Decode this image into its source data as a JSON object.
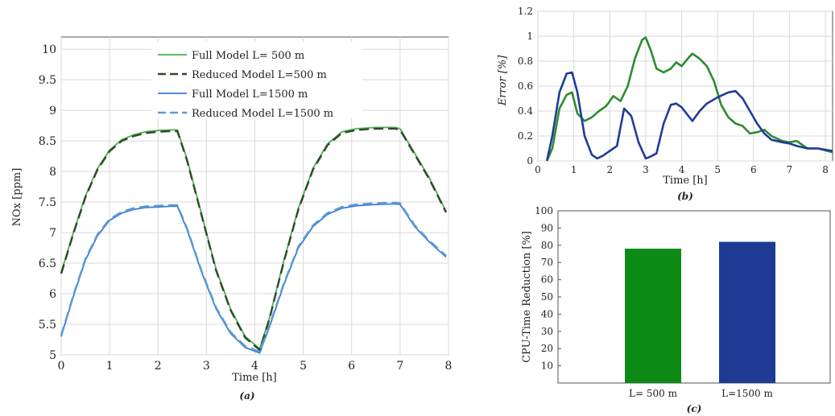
{
  "chart_data": [
    {
      "id": "a",
      "type": "line",
      "caption": "(a)",
      "xlabel": "Time [h]",
      "ylabel": "NOx [ppm]",
      "xlim": [
        0,
        8
      ],
      "ylim": [
        5,
        10.2
      ],
      "xticks": [
        0,
        1,
        2,
        3,
        4,
        5,
        6,
        7,
        8
      ],
      "yticks": [
        5,
        5.5,
        6,
        6.5,
        7,
        7.5,
        8,
        8.5,
        9,
        9.5,
        10
      ],
      "grid": true,
      "legend_position": "top-center",
      "series": [
        {
          "name": "Full Model L= 500 m",
          "color": "#4caf50",
          "style": "solid",
          "x": [
            0,
            0.25,
            0.5,
            0.75,
            1.0,
            1.25,
            1.5,
            1.75,
            2.0,
            2.25,
            2.4,
            2.6,
            2.9,
            3.2,
            3.5,
            3.8,
            4.1,
            4.3,
            4.6,
            4.9,
            5.2,
            5.5,
            5.8,
            6.1,
            6.5,
            6.9,
            7.0,
            7.3,
            7.6,
            7.95
          ],
          "y": [
            6.35,
            7.0,
            7.6,
            8.05,
            8.35,
            8.52,
            8.6,
            8.65,
            8.67,
            8.68,
            8.68,
            8.2,
            7.3,
            6.4,
            5.75,
            5.3,
            5.1,
            5.6,
            6.55,
            7.4,
            8.05,
            8.45,
            8.65,
            8.7,
            8.72,
            8.72,
            8.7,
            8.3,
            7.9,
            7.35
          ]
        },
        {
          "name": "Reduced Model L=500 m",
          "color": "#2f4a2a",
          "style": "dashed",
          "x": [
            0,
            0.25,
            0.5,
            0.75,
            1.0,
            1.25,
            1.5,
            1.75,
            2.0,
            2.25,
            2.4,
            2.6,
            2.9,
            3.2,
            3.5,
            3.8,
            4.1,
            4.3,
            4.6,
            4.9,
            5.2,
            5.5,
            5.8,
            6.1,
            6.5,
            6.9,
            7.0,
            7.3,
            7.6,
            7.95
          ],
          "y": [
            6.33,
            6.98,
            7.58,
            8.03,
            8.33,
            8.5,
            8.58,
            8.63,
            8.65,
            8.66,
            8.66,
            8.18,
            7.28,
            6.38,
            5.73,
            5.28,
            5.08,
            5.58,
            6.53,
            7.38,
            8.03,
            8.43,
            8.63,
            8.68,
            8.7,
            8.7,
            8.68,
            8.28,
            7.88,
            7.33
          ]
        },
        {
          "name": "Full Model L=1500 m",
          "color": "#3a7bd5",
          "style": "solid",
          "x": [
            0,
            0.25,
            0.5,
            0.75,
            1.0,
            1.25,
            1.5,
            1.75,
            2.0,
            2.25,
            2.4,
            2.6,
            2.9,
            3.2,
            3.5,
            3.8,
            4.1,
            4.3,
            4.6,
            4.9,
            5.2,
            5.5,
            5.8,
            6.1,
            6.5,
            6.9,
            7.0,
            7.3,
            7.6,
            7.95
          ],
          "y": [
            5.3,
            5.95,
            6.55,
            6.95,
            7.2,
            7.32,
            7.38,
            7.41,
            7.42,
            7.43,
            7.43,
            7.05,
            6.35,
            5.75,
            5.35,
            5.12,
            5.03,
            5.45,
            6.15,
            6.75,
            7.1,
            7.3,
            7.4,
            7.44,
            7.46,
            7.47,
            7.46,
            7.1,
            6.85,
            6.6
          ]
        },
        {
          "name": "Reduced Model L=1500 m",
          "color": "#5b9bd5",
          "style": "dashed",
          "x": [
            0,
            0.25,
            0.5,
            0.75,
            1.0,
            1.25,
            1.5,
            1.75,
            2.0,
            2.25,
            2.4,
            2.6,
            2.9,
            3.2,
            3.5,
            3.8,
            4.1,
            4.3,
            4.6,
            4.9,
            5.2,
            5.5,
            5.8,
            6.1,
            6.5,
            6.9,
            7.0,
            7.3,
            7.6,
            7.95
          ],
          "y": [
            5.32,
            5.97,
            6.57,
            6.97,
            7.22,
            7.34,
            7.4,
            7.43,
            7.44,
            7.45,
            7.45,
            7.07,
            6.37,
            5.77,
            5.37,
            5.14,
            5.05,
            5.47,
            6.17,
            6.77,
            7.12,
            7.32,
            7.42,
            7.46,
            7.48,
            7.49,
            7.48,
            7.12,
            6.87,
            6.62
          ]
        }
      ]
    },
    {
      "id": "b",
      "type": "line",
      "caption": "(b)",
      "xlabel": "Time [h]",
      "ylabel": "Error [%]",
      "xlim": [
        0,
        8.2
      ],
      "ylim": [
        0,
        1.2
      ],
      "xticks": [
        0,
        1,
        2,
        3,
        4,
        5,
        6,
        7,
        8
      ],
      "yticks": [
        0,
        0.2,
        0.4,
        0.6,
        0.8,
        1,
        1.2
      ],
      "yticklabels": [
        "0",
        "0.2",
        "0.4",
        "0.6",
        "0.8",
        "1",
        "1.2"
      ],
      "grid": true,
      "series": [
        {
          "color": "#2e8b2e",
          "x": [
            0.25,
            0.4,
            0.6,
            0.8,
            0.95,
            1.1,
            1.3,
            1.5,
            1.7,
            1.9,
            2.1,
            2.3,
            2.5,
            2.7,
            2.9,
            3.0,
            3.15,
            3.3,
            3.5,
            3.7,
            3.85,
            4.0,
            4.2,
            4.3,
            4.5,
            4.7,
            4.9,
            5.1,
            5.3,
            5.5,
            5.7,
            5.9,
            6.1,
            6.3,
            6.5,
            6.8,
            7.0,
            7.2,
            7.5,
            7.8,
            8.2
          ],
          "y": [
            0.0,
            0.1,
            0.42,
            0.53,
            0.55,
            0.38,
            0.32,
            0.35,
            0.4,
            0.44,
            0.52,
            0.48,
            0.6,
            0.82,
            0.97,
            0.99,
            0.88,
            0.74,
            0.71,
            0.74,
            0.79,
            0.76,
            0.83,
            0.86,
            0.82,
            0.76,
            0.64,
            0.45,
            0.35,
            0.3,
            0.28,
            0.22,
            0.23,
            0.25,
            0.2,
            0.16,
            0.15,
            0.16,
            0.1,
            0.1,
            0.07
          ]
        },
        {
          "color": "#1f3c99",
          "x": [
            0.25,
            0.4,
            0.6,
            0.8,
            0.95,
            1.1,
            1.3,
            1.5,
            1.65,
            1.8,
            2.0,
            2.2,
            2.4,
            2.6,
            2.8,
            3.0,
            3.1,
            3.3,
            3.5,
            3.7,
            3.85,
            4.0,
            4.3,
            4.5,
            4.7,
            5.0,
            5.3,
            5.5,
            5.7,
            5.9,
            6.1,
            6.3,
            6.5,
            6.8,
            7.0,
            7.2,
            7.5,
            7.8,
            8.2
          ],
          "y": [
            0.0,
            0.2,
            0.55,
            0.7,
            0.71,
            0.55,
            0.2,
            0.05,
            0.02,
            0.04,
            0.08,
            0.12,
            0.42,
            0.36,
            0.15,
            0.02,
            0.03,
            0.06,
            0.3,
            0.45,
            0.46,
            0.43,
            0.32,
            0.4,
            0.46,
            0.51,
            0.55,
            0.56,
            0.5,
            0.4,
            0.3,
            0.22,
            0.17,
            0.15,
            0.14,
            0.12,
            0.1,
            0.1,
            0.08
          ]
        }
      ]
    },
    {
      "id": "c",
      "type": "bar",
      "caption": "(c)",
      "xlabel": "",
      "ylabel": "CPU-Time Reduction [%]",
      "categories": [
        "L= 500 m",
        "L=1500 m"
      ],
      "values": [
        78,
        82
      ],
      "colors": [
        "#0e8a16",
        "#1f3a93"
      ],
      "ylim": [
        0,
        100
      ],
      "yticks": [
        10,
        20,
        30,
        40,
        50,
        60,
        70,
        80,
        90,
        100
      ],
      "grid": false
    }
  ]
}
